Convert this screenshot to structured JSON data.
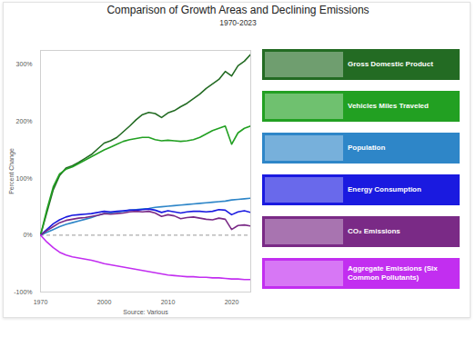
{
  "chart_data": {
    "type": "line",
    "title": "Comparison of Growth Areas and Declining Emissions",
    "subtitle": "1970-2023",
    "xlabel": "Source: Various",
    "ylabel": "Percent Change",
    "categories": [
      "1970",
      null,
      null,
      null,
      null,
      null,
      null,
      null,
      null,
      null,
      "2000",
      null,
      null,
      null,
      null,
      null,
      null,
      null,
      null,
      null,
      "2010",
      null,
      null,
      null,
      null,
      null,
      null,
      null,
      null,
      null,
      "2020",
      null,
      null,
      null
    ],
    "ylim": [
      -100,
      325
    ],
    "yticks": [
      {
        "value": -100,
        "label": "-100%"
      },
      {
        "value": 0,
        "label": "0%"
      },
      {
        "value": 100,
        "label": "100%"
      },
      {
        "value": 200,
        "label": "200%"
      },
      {
        "value": 300,
        "label": "300%"
      }
    ],
    "grid": false,
    "legend": "right",
    "series": [
      {
        "name": "Gross Domestic Product",
        "color": "#236b23",
        "values": [
          0,
          40,
          80,
          105,
          118,
          122,
          128,
          135,
          142,
          152,
          162,
          166,
          172,
          182,
          192,
          203,
          212,
          216,
          214,
          207,
          215,
          219,
          226,
          232,
          240,
          248,
          258,
          266,
          274,
          288,
          280,
          298,
          306,
          318
        ]
      },
      {
        "name": "Vehicles Miles Traveled",
        "color": "#22a022",
        "values": [
          0,
          45,
          85,
          108,
          116,
          120,
          126,
          132,
          138,
          144,
          150,
          155,
          160,
          165,
          168,
          170,
          172,
          172,
          168,
          166,
          167,
          166,
          165,
          166,
          168,
          172,
          178,
          184,
          188,
          192,
          160,
          180,
          188,
          192
        ]
      },
      {
        "name": "Population",
        "color": "#2e86c8",
        "values": [
          0,
          5,
          10,
          15,
          19,
          22,
          25,
          28,
          31,
          35,
          38,
          39,
          41,
          42,
          44,
          45,
          46,
          47,
          49,
          50,
          51,
          52,
          53,
          54,
          55,
          56,
          57,
          58,
          59,
          60,
          62,
          63,
          64,
          65
        ]
      },
      {
        "name": "Energy Consumption",
        "color": "#1a1ae0",
        "values": [
          0,
          10,
          20,
          27,
          32,
          35,
          36,
          37,
          38,
          40,
          42,
          41,
          42,
          43,
          44,
          44,
          45,
          46,
          44,
          40,
          43,
          41,
          39,
          41,
          42,
          42,
          41,
          42,
          45,
          44,
          36,
          41,
          43,
          40
        ]
      },
      {
        "name": "CO₂ Emissions",
        "color": "#7a2a86",
        "values": [
          0,
          8,
          15,
          22,
          26,
          28,
          30,
          31,
          33,
          35,
          38,
          37,
          38,
          39,
          41,
          42,
          41,
          42,
          39,
          33,
          36,
          34,
          29,
          31,
          32,
          30,
          28,
          27,
          30,
          28,
          10,
          17,
          18,
          16
        ]
      },
      {
        "name": "Aggregate Emissions (Six Common Pollutants)",
        "color": "#c22ef0",
        "values": [
          0,
          -12,
          -22,
          -30,
          -35,
          -38,
          -40,
          -42,
          -44,
          -47,
          -50,
          -52,
          -54,
          -56,
          -58,
          -60,
          -62,
          -64,
          -66,
          -68,
          -70,
          -71,
          -72,
          -73,
          -73,
          -74,
          -74,
          -75,
          -75,
          -76,
          -77,
          -77,
          -78,
          -78
        ]
      }
    ]
  }
}
